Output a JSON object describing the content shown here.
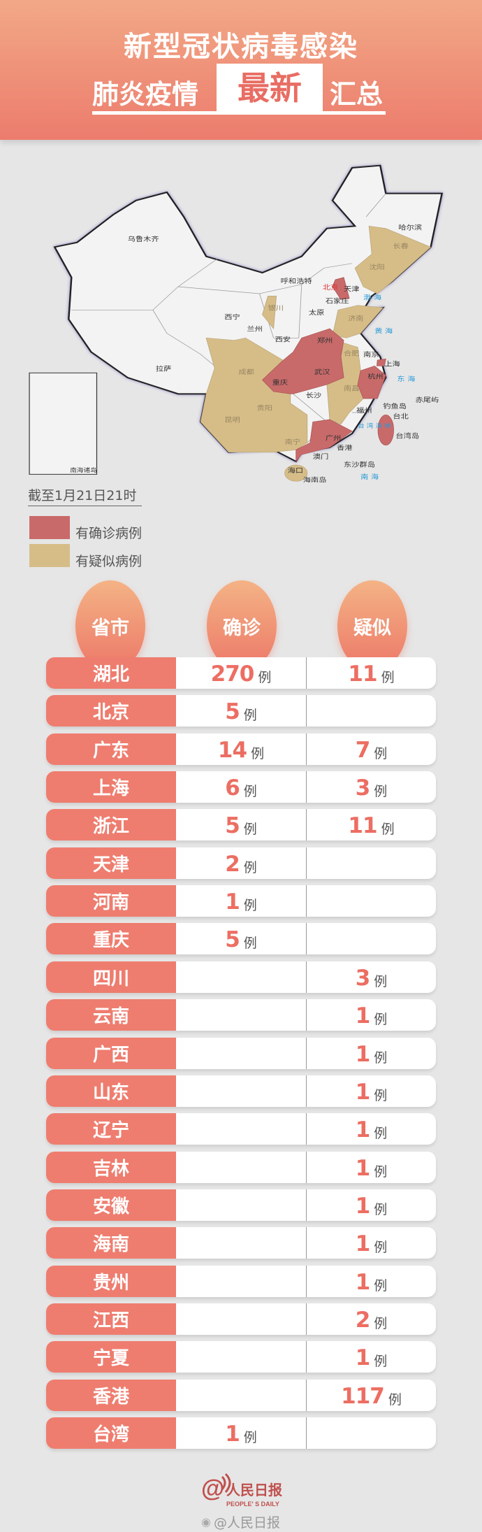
{
  "header": {
    "line1": "新型冠状病毒感染",
    "line2_left": "肺炎疫情",
    "line2_highlight": "最新",
    "line2_right": "汇总"
  },
  "map": {
    "colors": {
      "confirmed": "#c96a6a",
      "suspected": "#d6bd88"
    },
    "labels": {
      "urumqi": "乌鲁木齐",
      "lhasa": "拉萨",
      "xining": "西宁",
      "lanzhou": "兰州",
      "yinchuan": "银川",
      "xian": "西安",
      "hohhot": "呼和浩特",
      "beijing": "北京",
      "tianjin": "天津",
      "shijiazhuang": "石家庄",
      "taiyuan": "太原",
      "jinan": "济南",
      "zhengzhou": "郑州",
      "hefei": "合肥",
      "nanjing": "南京",
      "shanghai": "上海",
      "wuhan": "武汉",
      "hangzhou": "杭州",
      "chengdu": "成都",
      "chongqing": "重庆",
      "changsha": "长沙",
      "nanchang": "南昌",
      "guiyang": "贵阳",
      "kunming": "昆明",
      "fuzhou": "福州",
      "nanning": "南宁",
      "guangzhou": "广州",
      "hongkong": "香港",
      "macau": "澳门",
      "haikou": "海口",
      "hainan_island": "海南岛",
      "taipei": "台北",
      "taiwan_island": "台湾岛",
      "diaoyu": "钓鱼岛",
      "chiwei": "赤尾屿",
      "dongsha": "东沙群岛",
      "harbin": "哈尔滨",
      "changchun": "长春",
      "shenyang": "沈阳",
      "bohai": "渤 海",
      "yellow_sea": "黄 海",
      "east_sea": "东 海",
      "south_sea": "南 海",
      "strait": "台 湾 海 峡",
      "inset": "南海诸岛"
    }
  },
  "as_of": "截至1月21日21时",
  "legend": [
    {
      "label": "有确诊病例",
      "color": "#c96a6a"
    },
    {
      "label": "有疑似病例",
      "color": "#d6bd88"
    }
  ],
  "table": {
    "headers": [
      "省市",
      "确诊",
      "疑似"
    ],
    "unit": "例",
    "rows": [
      {
        "province": "湖北",
        "confirmed": "270",
        "suspected": "11"
      },
      {
        "province": "北京",
        "confirmed": "5",
        "suspected": null
      },
      {
        "province": "广东",
        "confirmed": "14",
        "suspected": "7"
      },
      {
        "province": "上海",
        "confirmed": "6",
        "suspected": "3"
      },
      {
        "province": "浙江",
        "confirmed": "5",
        "suspected": "11"
      },
      {
        "province": "天津",
        "confirmed": "2",
        "suspected": null
      },
      {
        "province": "河南",
        "confirmed": "1",
        "suspected": null
      },
      {
        "province": "重庆",
        "confirmed": "5",
        "suspected": null
      },
      {
        "province": "四川",
        "confirmed": null,
        "suspected": "3"
      },
      {
        "province": "云南",
        "confirmed": null,
        "suspected": "1"
      },
      {
        "province": "广西",
        "confirmed": null,
        "suspected": "1"
      },
      {
        "province": "山东",
        "confirmed": null,
        "suspected": "1"
      },
      {
        "province": "辽宁",
        "confirmed": null,
        "suspected": "1"
      },
      {
        "province": "吉林",
        "confirmed": null,
        "suspected": "1"
      },
      {
        "province": "安徽",
        "confirmed": null,
        "suspected": "1"
      },
      {
        "province": "海南",
        "confirmed": null,
        "suspected": "1"
      },
      {
        "province": "贵州",
        "confirmed": null,
        "suspected": "1"
      },
      {
        "province": "江西",
        "confirmed": null,
        "suspected": "2"
      },
      {
        "province": "宁夏",
        "confirmed": null,
        "suspected": "1"
      },
      {
        "province": "香港",
        "confirmed": null,
        "suspected": "117"
      },
      {
        "province": "台湾",
        "confirmed": "1",
        "suspected": null
      }
    ]
  },
  "footer": {
    "logo_text": "人民日报",
    "logo_en": "PEOPLE' S DAILY",
    "weibo_handle": "@人民日报",
    "accent": "#c0504d"
  }
}
